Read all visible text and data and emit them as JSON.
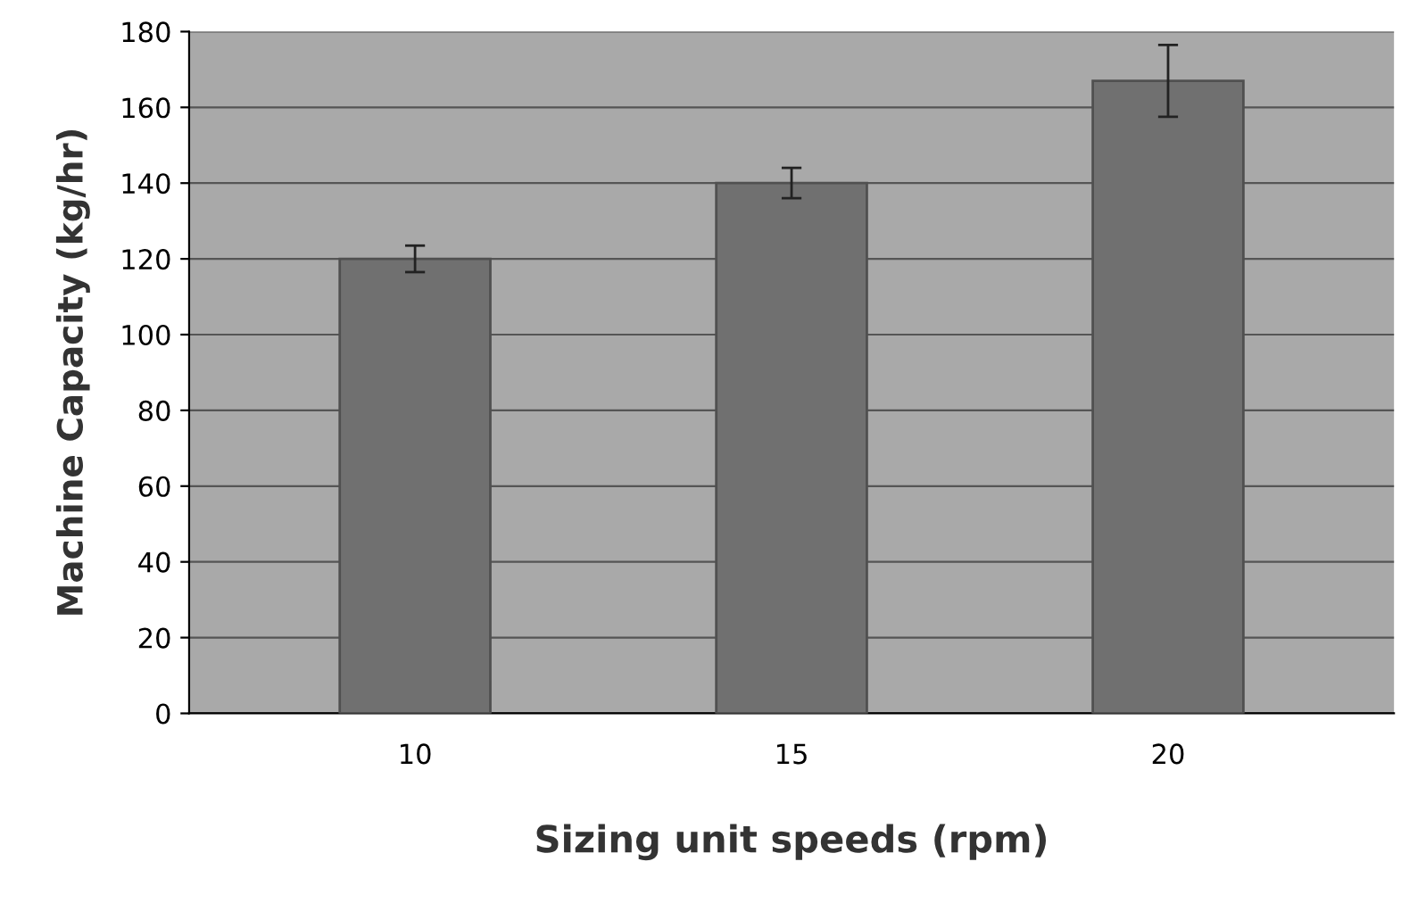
{
  "chart_data": {
    "type": "bar",
    "xlabel": "Sizing unit speeds (rpm)",
    "ylabel": "Machine Capacity (kg/hr)",
    "categories": [
      "10",
      "15",
      "20"
    ],
    "values": [
      120,
      140,
      167
    ],
    "errors": [
      3.5,
      4,
      9.5
    ],
    "color": "#707070",
    "ylim": [
      0,
      180
    ],
    "yticks": [
      0,
      20,
      40,
      60,
      80,
      100,
      120,
      140,
      160,
      180
    ],
    "grid": "y"
  }
}
